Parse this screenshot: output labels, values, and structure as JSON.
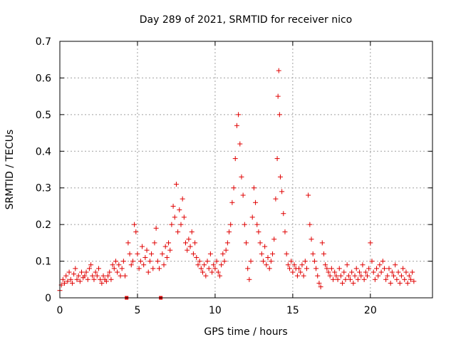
{
  "chart_data": {
    "type": "scatter",
    "title": "Day 289 of 2021, SRMTID for receiver nico",
    "xlabel": "GPS time / hours",
    "ylabel": "SRMTID / TECUs",
    "xlim": [
      0,
      24
    ],
    "ylim": [
      0,
      0.7
    ],
    "x_ticks": [
      0,
      5,
      10,
      15,
      20
    ],
    "x_tick_labels": [
      "0",
      "5",
      "10",
      "15",
      "20"
    ],
    "y_ticks": [
      0,
      0.1,
      0.2,
      0.3,
      0.4,
      0.5,
      0.6,
      0.7
    ],
    "y_tick_labels": [
      "0",
      "0.1",
      "0.2",
      "0.3",
      "0.4",
      "0.5",
      "0.6",
      "0.7"
    ],
    "grid": true,
    "marker": "plus",
    "color": "#e00000",
    "zero_markers_x": [
      4.3,
      6.5
    ],
    "series": [
      {
        "name": "SRMTID",
        "x": [
          0.0,
          0.1,
          0.2,
          0.3,
          0.4,
          0.5,
          0.6,
          0.7,
          0.8,
          0.9,
          1.0,
          1.1,
          1.2,
          1.3,
          1.4,
          1.5,
          1.6,
          1.7,
          1.8,
          1.9,
          2.0,
          2.1,
          2.2,
          2.3,
          2.4,
          2.5,
          2.6,
          2.7,
          2.8,
          2.9,
          3.0,
          3.1,
          3.2,
          3.3,
          3.4,
          3.5,
          3.6,
          3.7,
          3.8,
          3.9,
          4.0,
          4.1,
          4.2,
          4.4,
          4.5,
          4.6,
          4.7,
          4.8,
          4.9,
          5.0,
          5.1,
          5.2,
          5.3,
          5.4,
          5.5,
          5.6,
          5.7,
          5.8,
          5.9,
          6.0,
          6.1,
          6.2,
          6.3,
          6.4,
          6.6,
          6.7,
          6.8,
          6.9,
          7.0,
          7.1,
          7.2,
          7.3,
          7.4,
          7.5,
          7.6,
          7.7,
          7.8,
          7.9,
          8.0,
          8.1,
          8.2,
          8.3,
          8.4,
          8.5,
          8.6,
          8.7,
          8.8,
          8.9,
          9.0,
          9.1,
          9.2,
          9.3,
          9.4,
          9.5,
          9.6,
          9.7,
          9.8,
          9.9,
          10.0,
          10.1,
          10.2,
          10.3,
          10.4,
          10.5,
          10.6,
          10.7,
          10.8,
          10.9,
          11.0,
          11.1,
          11.2,
          11.3,
          11.4,
          11.5,
          11.6,
          11.7,
          11.8,
          11.9,
          12.0,
          12.1,
          12.2,
          12.3,
          12.4,
          12.5,
          12.6,
          12.7,
          12.8,
          12.9,
          13.0,
          13.1,
          13.2,
          13.3,
          13.4,
          13.5,
          13.6,
          13.7,
          13.8,
          13.9,
          14.0,
          14.05,
          14.1,
          14.15,
          14.2,
          14.3,
          14.4,
          14.5,
          14.6,
          14.7,
          14.8,
          14.9,
          15.0,
          15.1,
          15.2,
          15.3,
          15.4,
          15.5,
          15.6,
          15.7,
          15.8,
          15.9,
          16.0,
          16.1,
          16.2,
          16.3,
          16.4,
          16.5,
          16.6,
          16.7,
          16.8,
          16.9,
          17.0,
          17.1,
          17.2,
          17.3,
          17.4,
          17.5,
          17.6,
          17.7,
          17.8,
          17.9,
          18.0,
          18.1,
          18.2,
          18.3,
          18.4,
          18.5,
          18.6,
          18.7,
          18.8,
          18.9,
          19.0,
          19.1,
          19.2,
          19.3,
          19.4,
          19.5,
          19.6,
          19.7,
          19.8,
          19.9,
          20.0,
          20.1,
          20.2,
          20.3,
          20.4,
          20.5,
          20.6,
          20.7,
          20.8,
          20.9,
          21.0,
          21.1,
          21.2,
          21.3,
          21.4,
          21.5,
          21.6,
          21.7,
          21.8,
          21.9,
          22.0,
          22.1,
          22.2,
          22.3,
          22.4,
          22.5,
          22.6,
          22.7,
          22.8
        ],
        "y": [
          0.02,
          0.035,
          0.05,
          0.04,
          0.06,
          0.045,
          0.07,
          0.05,
          0.04,
          0.065,
          0.08,
          0.05,
          0.06,
          0.045,
          0.07,
          0.055,
          0.06,
          0.07,
          0.05,
          0.08,
          0.09,
          0.06,
          0.05,
          0.07,
          0.06,
          0.08,
          0.05,
          0.04,
          0.06,
          0.05,
          0.045,
          0.06,
          0.07,
          0.05,
          0.09,
          0.08,
          0.1,
          0.07,
          0.09,
          0.06,
          0.08,
          0.1,
          0.06,
          0.15,
          0.12,
          0.09,
          0.1,
          0.2,
          0.18,
          0.12,
          0.08,
          0.1,
          0.14,
          0.09,
          0.11,
          0.13,
          0.07,
          0.1,
          0.12,
          0.08,
          0.15,
          0.19,
          0.1,
          0.08,
          0.12,
          0.09,
          0.14,
          0.11,
          0.15,
          0.13,
          0.2,
          0.25,
          0.22,
          0.31,
          0.18,
          0.24,
          0.2,
          0.27,
          0.22,
          0.15,
          0.13,
          0.16,
          0.14,
          0.18,
          0.12,
          0.15,
          0.11,
          0.09,
          0.1,
          0.08,
          0.07,
          0.09,
          0.06,
          0.1,
          0.08,
          0.12,
          0.07,
          0.09,
          0.08,
          0.1,
          0.07,
          0.06,
          0.09,
          0.12,
          0.1,
          0.13,
          0.15,
          0.18,
          0.2,
          0.26,
          0.3,
          0.38,
          0.47,
          0.5,
          0.42,
          0.33,
          0.28,
          0.2,
          0.15,
          0.08,
          0.05,
          0.1,
          0.22,
          0.3,
          0.26,
          0.2,
          0.18,
          0.15,
          0.12,
          0.1,
          0.14,
          0.09,
          0.11,
          0.08,
          0.1,
          0.12,
          0.16,
          0.27,
          0.38,
          0.55,
          0.62,
          0.5,
          0.33,
          0.29,
          0.23,
          0.18,
          0.12,
          0.09,
          0.08,
          0.1,
          0.07,
          0.09,
          0.08,
          0.06,
          0.08,
          0.07,
          0.09,
          0.06,
          0.1,
          0.08,
          0.28,
          0.2,
          0.16,
          0.12,
          0.1,
          0.08,
          0.06,
          0.04,
          0.03,
          0.15,
          0.12,
          0.09,
          0.08,
          0.07,
          0.06,
          0.08,
          0.05,
          0.07,
          0.06,
          0.05,
          0.08,
          0.06,
          0.04,
          0.07,
          0.05,
          0.09,
          0.06,
          0.05,
          0.07,
          0.04,
          0.06,
          0.08,
          0.05,
          0.07,
          0.06,
          0.09,
          0.05,
          0.07,
          0.06,
          0.08,
          0.15,
          0.1,
          0.07,
          0.05,
          0.08,
          0.06,
          0.09,
          0.07,
          0.1,
          0.08,
          0.05,
          0.06,
          0.08,
          0.04,
          0.07,
          0.06,
          0.09,
          0.05,
          0.07,
          0.04,
          0.06,
          0.08,
          0.05,
          0.07,
          0.04,
          0.06,
          0.05,
          0.07,
          0.045
        ]
      }
    ]
  }
}
